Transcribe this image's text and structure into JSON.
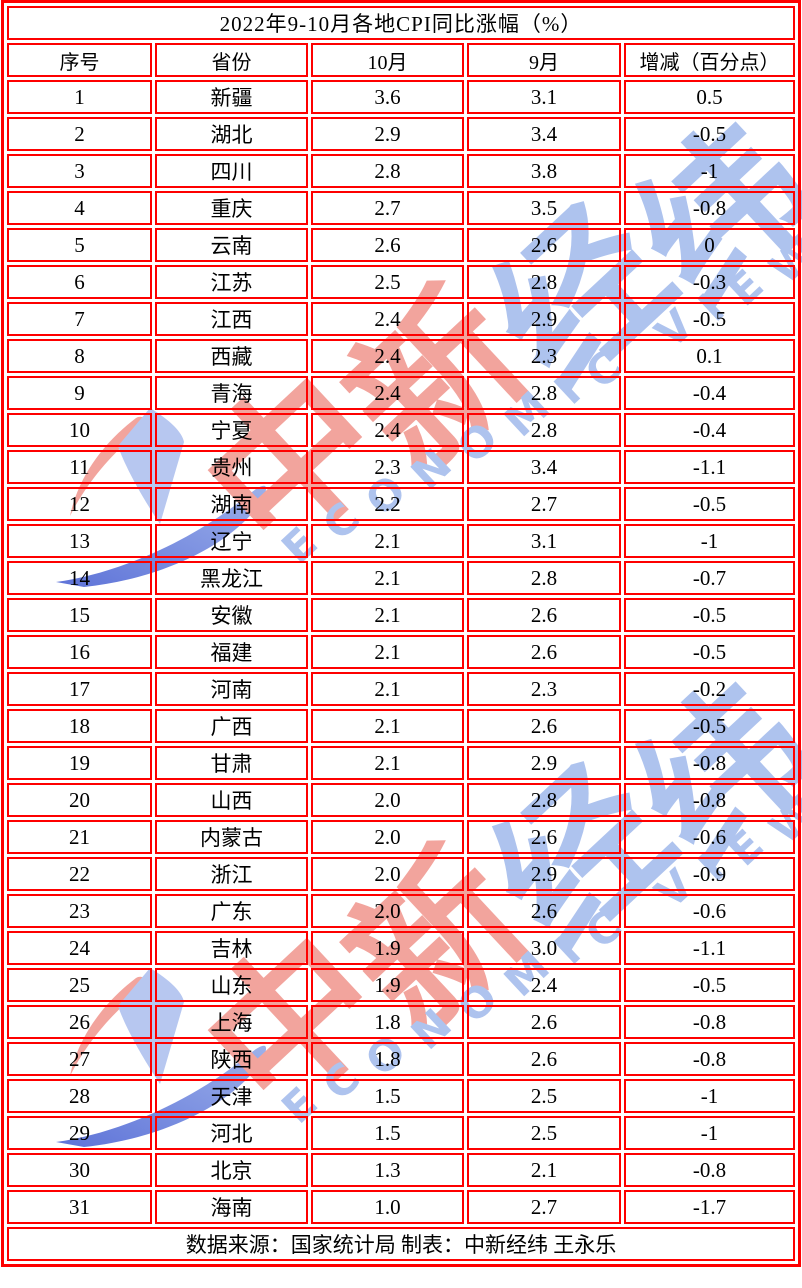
{
  "watermark": {
    "zh_red": "中新",
    "zh_blue": "经纬",
    "en": "ECONOMIC VIEW"
  },
  "colors": {
    "border_red": "#fe0000",
    "watermark_red": "#f2a49d",
    "watermark_blue": "#aec3ee",
    "logo_blue_dark": "#5e73d8",
    "logo_blue_light": "#b7c7f0",
    "text": "#000000",
    "background": "#ffffff"
  },
  "chart_data": {
    "type": "table",
    "title": "2022年9-10月各地CPI同比涨幅（%）",
    "columns": [
      "序号",
      "省份",
      "10月",
      "9月",
      "增减（百分点）"
    ],
    "rows": [
      [
        "1",
        "新疆",
        "3.6",
        "3.1",
        "0.5"
      ],
      [
        "2",
        "湖北",
        "2.9",
        "3.4",
        "-0.5"
      ],
      [
        "3",
        "四川",
        "2.8",
        "3.8",
        "-1"
      ],
      [
        "4",
        "重庆",
        "2.7",
        "3.5",
        "-0.8"
      ],
      [
        "5",
        "云南",
        "2.6",
        "2.6",
        "0"
      ],
      [
        "6",
        "江苏",
        "2.5",
        "2.8",
        "-0.3"
      ],
      [
        "7",
        "江西",
        "2.4",
        "2.9",
        "-0.5"
      ],
      [
        "8",
        "西藏",
        "2.4",
        "2.3",
        "0.1"
      ],
      [
        "9",
        "青海",
        "2.4",
        "2.8",
        "-0.4"
      ],
      [
        "10",
        "宁夏",
        "2.4",
        "2.8",
        "-0.4"
      ],
      [
        "11",
        "贵州",
        "2.3",
        "3.4",
        "-1.1"
      ],
      [
        "12",
        "湖南",
        "2.2",
        "2.7",
        "-0.5"
      ],
      [
        "13",
        "辽宁",
        "2.1",
        "3.1",
        "-1"
      ],
      [
        "14",
        "黑龙江",
        "2.1",
        "2.8",
        "-0.7"
      ],
      [
        "15",
        "安徽",
        "2.1",
        "2.6",
        "-0.5"
      ],
      [
        "16",
        "福建",
        "2.1",
        "2.6",
        "-0.5"
      ],
      [
        "17",
        "河南",
        "2.1",
        "2.3",
        "-0.2"
      ],
      [
        "18",
        "广西",
        "2.1",
        "2.6",
        "-0.5"
      ],
      [
        "19",
        "甘肃",
        "2.1",
        "2.9",
        "-0.8"
      ],
      [
        "20",
        "山西",
        "2.0",
        "2.8",
        "-0.8"
      ],
      [
        "21",
        "内蒙古",
        "2.0",
        "2.6",
        "-0.6"
      ],
      [
        "22",
        "浙江",
        "2.0",
        "2.9",
        "-0.9"
      ],
      [
        "23",
        "广东",
        "2.0",
        "2.6",
        "-0.6"
      ],
      [
        "24",
        "吉林",
        "1.9",
        "3.0",
        "-1.1"
      ],
      [
        "25",
        "山东",
        "1.9",
        "2.4",
        "-0.5"
      ],
      [
        "26",
        "上海",
        "1.8",
        "2.6",
        "-0.8"
      ],
      [
        "27",
        "陕西",
        "1.8",
        "2.6",
        "-0.8"
      ],
      [
        "28",
        "天津",
        "1.5",
        "2.5",
        "-1"
      ],
      [
        "29",
        "河北",
        "1.5",
        "2.5",
        "-1"
      ],
      [
        "30",
        "北京",
        "1.3",
        "2.1",
        "-0.8"
      ],
      [
        "31",
        "海南",
        "1.0",
        "2.7",
        "-1.7"
      ]
    ],
    "source_note": "数据来源：国家统计局 制表：中新经纬 王永乐"
  }
}
